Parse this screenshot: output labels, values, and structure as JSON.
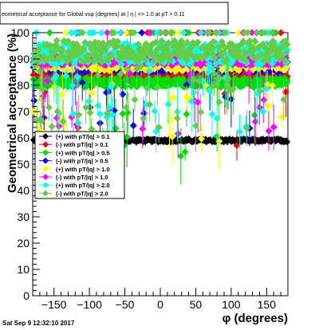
{
  "chart_data": {
    "type": "scatter",
    "title": "eometrical acceptance for Global vsφ (degrees) at | η | <= 1.0 at pT > 0.11",
    "xlabel": "φ (degrees)",
    "ylabel": "Geometrical acceptance (%)",
    "xlim": [
      -180,
      180
    ],
    "ylim": [
      0,
      100
    ],
    "x_ticks": [
      "−150",
      "−100",
      "−50",
      "0",
      "50",
      "100",
      "150"
    ],
    "y_ticks": [
      "0",
      "10",
      "20",
      "30",
      "40",
      "50",
      "60",
      "70",
      "80",
      "90",
      "100"
    ],
    "grid": false,
    "legend_position": "left-middle",
    "timestamp": "Sat Sep  9 12:32:10 2017",
    "series": [
      {
        "name": "(+) with pT/|q| > 0.1",
        "color": "#000000",
        "marker": "diamond",
        "level": 59,
        "spread": 0.6,
        "dip_rate": 0.0
      },
      {
        "name": "(-) with pT/|q| > 0.1",
        "color": "#ff0000",
        "marker": "diamond",
        "level": 84,
        "spread": 1.8,
        "dip_rate": 0.03
      },
      {
        "name": "(+) with pT/|q| > 0.5",
        "color": "#00dd00",
        "marker": "diamond",
        "level": 81,
        "spread": 1.8,
        "dip_rate": 0.05
      },
      {
        "name": "(-) with pT/|q| > 0.5",
        "color": "#0000ff",
        "marker": "diamond",
        "level": 87,
        "spread": 2.0,
        "dip_rate": 0.03
      },
      {
        "name": "(+) with pT/|q| > 1.0",
        "color": "#ffff00",
        "marker": "diamond",
        "level": 88,
        "spread": 2.5,
        "dip_rate": 0.04
      },
      {
        "name": "(-) with pT/|q| > 1.0",
        "color": "#ff00ff",
        "marker": "diamond",
        "level": 90,
        "spread": 2.5,
        "dip_rate": 0.05
      },
      {
        "name": "(+) with pT/|q| > 2.0",
        "color": "#00ffff",
        "marker": "diamond",
        "level": 92,
        "spread": 4.0,
        "dip_rate": 0.09
      },
      {
        "name": "(-) with pT/|q| > 2.0",
        "color": "#66cc44",
        "marker": "diamond",
        "level": 93,
        "spread": 4.0,
        "dip_rate": 0.11
      }
    ]
  }
}
